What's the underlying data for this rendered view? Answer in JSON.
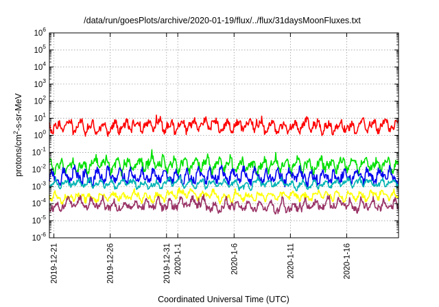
{
  "chart_data": {
    "type": "line",
    "title": "/data/run/goesPlots/archive/2020-01-19/flux/../flux/31daysMoonFluxes.txt",
    "xlabel": "Coordinated Universal Time (UTC)",
    "ylabel_parts": {
      "prefix": "protons/cm",
      "sup": "2",
      "suffix": "-s-sr-MeV"
    },
    "yscale": "log",
    "ylim": [
      1e-06,
      1000000.0
    ],
    "y_ticks": [
      {
        "base": "10",
        "exp": "-6"
      },
      {
        "base": "10",
        "exp": "-5"
      },
      {
        "base": "10",
        "exp": "-4"
      },
      {
        "base": "10",
        "exp": "-3"
      },
      {
        "base": "10",
        "exp": "-2"
      },
      {
        "base": "10",
        "exp": "-1"
      },
      {
        "base": "10",
        "exp": "0"
      },
      {
        "base": "10",
        "exp": "1"
      },
      {
        "base": "10",
        "exp": "2"
      },
      {
        "base": "10",
        "exp": "3"
      },
      {
        "base": "10",
        "exp": "4"
      },
      {
        "base": "10",
        "exp": "5"
      },
      {
        "base": "10",
        "exp": "6"
      }
    ],
    "x_ticks": [
      "2019-12-21",
      "2019-12-26",
      "2019-12-31",
      "2020-1-1",
      "2020-1-6",
      "2020-1-11",
      "2020-1-16"
    ],
    "x_tick_days": [
      0,
      5,
      10,
      11,
      16,
      21,
      26
    ],
    "xlim_days": [
      -0.4,
      30.6
    ],
    "grid": true,
    "series": [
      {
        "color": "#00e000",
        "center": -1.72,
        "amp": 0.42,
        "seed": 11
      },
      {
        "color": "#0000ee",
        "center": -2.4,
        "amp": 0.4,
        "seed": 23
      },
      {
        "color": "#00b3b3",
        "center": -2.82,
        "amp": 0.22,
        "seed": 37
      },
      {
        "color": "#ffff00",
        "center": -3.55,
        "amp": 0.25,
        "seed": 51
      },
      {
        "color": "#993366",
        "center": -4.05,
        "amp": 0.32,
        "seed": 67
      },
      {
        "color": "#ff0000",
        "center": 0.55,
        "amp": 0.38,
        "seed": 83
      }
    ]
  }
}
